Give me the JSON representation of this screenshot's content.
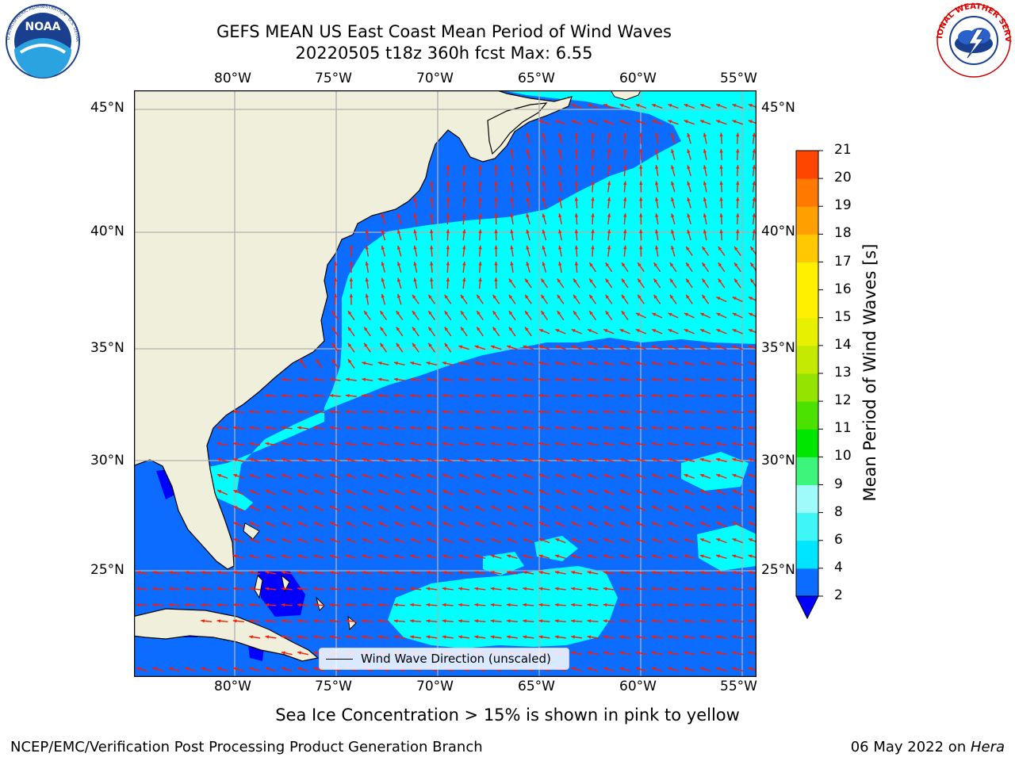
{
  "title": {
    "line1": "GEFS MEAN US East Coast Mean Period of Wind Waves",
    "line2": "20220505 t18z 360h fcst   Max: 6.55"
  },
  "logos": {
    "noaa_text": "NOAA",
    "noaa_ring": "NATIONAL OCEANIC AND ATMOSPHERIC ADMINISTRATION · U.S. DEPARTMENT OF COMMERCE",
    "nws_ring": "NATIONAL WEATHER SERVICE"
  },
  "axes": {
    "lon_labels": [
      "80°W",
      "75°W",
      "70°W",
      "65°W",
      "60°W",
      "55°W"
    ],
    "lat_labels": [
      "45°N",
      "40°N",
      "35°N",
      "30°N",
      "25°N"
    ]
  },
  "colorbar": {
    "label": "Mean Period of Wind Waves [s]",
    "ticks": [
      "2",
      "4",
      "6",
      "8",
      "9",
      "10",
      "11",
      "12",
      "13",
      "14",
      "15",
      "16",
      "17",
      "18",
      "19",
      "20",
      "21"
    ],
    "colors": [
      "#0b6cff",
      "#00e5ff",
      "#3ff5f5",
      "#9ffafa",
      "#3cf57a",
      "#00e600",
      "#4be200",
      "#95e300",
      "#c3ea00",
      "#e6f000",
      "#fff000",
      "#fff000",
      "#ffc800",
      "#ffa000",
      "#ff7800",
      "#ff4600",
      "#ff1e00",
      "#ff0000"
    ],
    "under_color": "#0000ff"
  },
  "legend": {
    "text": "Wind Wave Direction (unscaled)"
  },
  "subtitle": "Sea Ice Concentration > 15% is shown in pink to yellow",
  "footer": {
    "left": "NCEP/EMC/Verification Post Processing Product Generation Branch",
    "date": "06 May 2022 on ",
    "host": "Hera"
  },
  "colors": {
    "land": "#efefdc",
    "ocean_2_4": "#0b6cff",
    "ocean_4_6": "#00ffff",
    "arrow": "#ff1a00",
    "grid": "#b0b0b0"
  }
}
